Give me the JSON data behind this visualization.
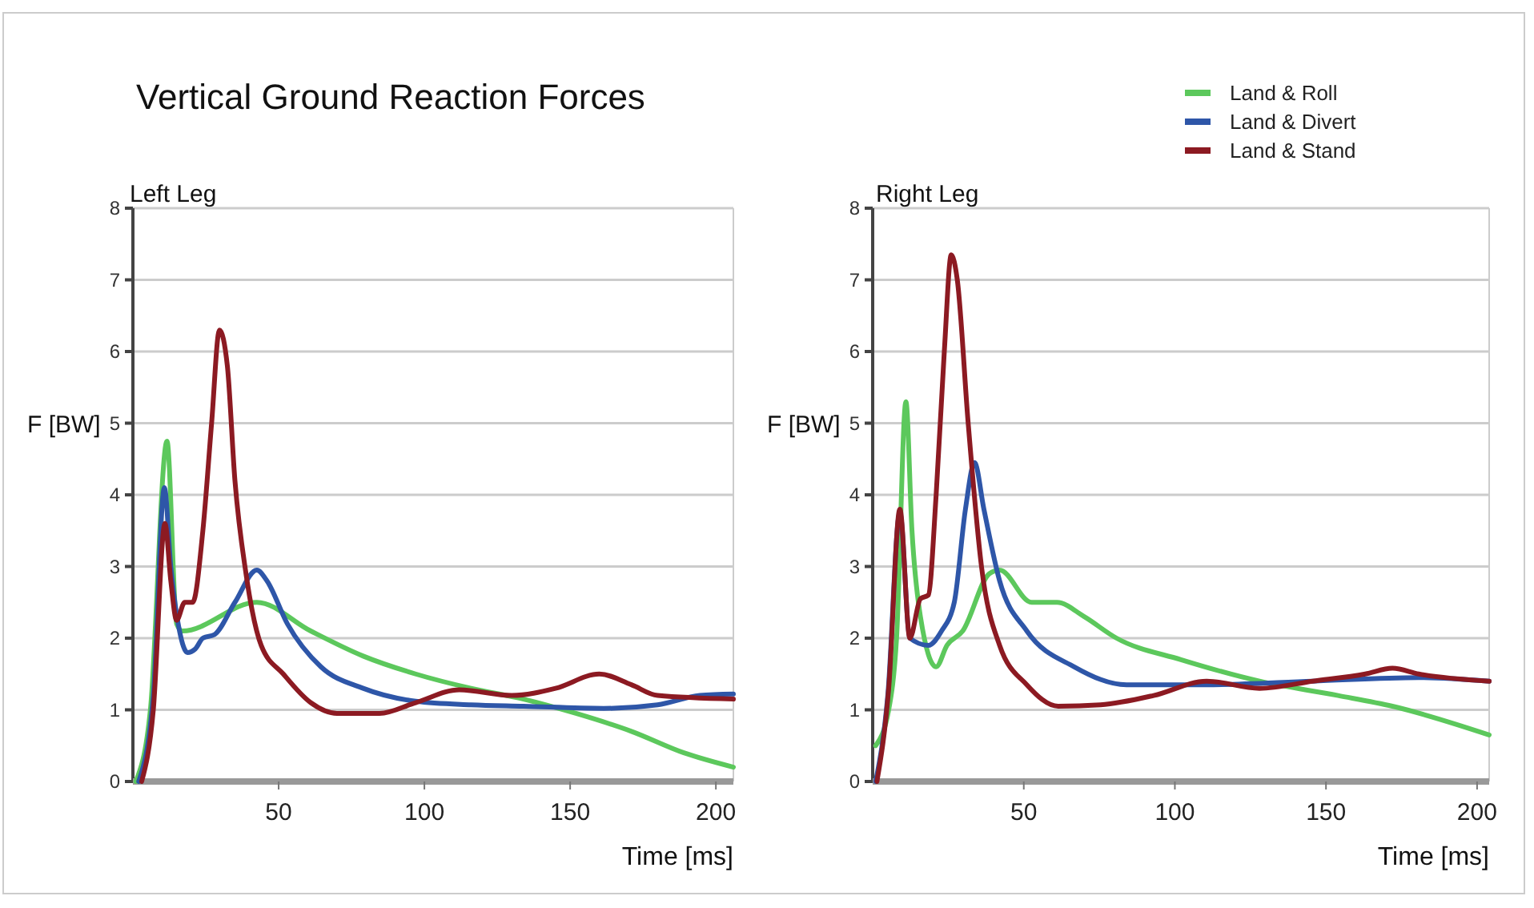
{
  "chart_data": [
    {
      "type": "line",
      "title": "Vertical Ground Reaction Forces",
      "subtitle": "Left Leg",
      "xlabel": "Time [ms]",
      "ylabel": "F [BW]",
      "xlim": [
        0,
        206
      ],
      "xticks": [
        50,
        100,
        150,
        200
      ],
      "ylim": [
        0,
        8
      ],
      "yticks": [
        0,
        1,
        2,
        3,
        4,
        5,
        6,
        7,
        8
      ],
      "grid": "y",
      "legend": false,
      "line_style": "solid",
      "series": [
        {
          "color": "#5cc85c",
          "x": [
            1,
            6,
            11.7,
            15,
            17,
            42.5,
            61,
            79,
            97,
            116,
            134,
            152,
            171,
            189,
            206
          ],
          "values": [
            0,
            1,
            4.75,
            2.2,
            2.1,
            2.5,
            2.1,
            1.75,
            1.5,
            1.3,
            1.15,
            0.95,
            0.7,
            0.4,
            0.2
          ]
        },
        {
          "color": "#2e56a8",
          "x": [
            2,
            7,
            10.8,
            13,
            16,
            18.7,
            21.4,
            24,
            28,
            35,
            42.5,
            46,
            53,
            64.5,
            79,
            97,
            116,
            134,
            161.5,
            180,
            194.5,
            206
          ],
          "values": [
            0,
            1.2,
            4.1,
            3,
            2.1,
            1.8,
            1.85,
            2,
            2.05,
            2.5,
            2.95,
            2.8,
            2.2,
            1.6,
            1.3,
            1.12,
            1.07,
            1.05,
            1.02,
            1.07,
            1.2,
            1.22
          ]
        },
        {
          "color": "#8c1a22",
          "x": [
            3,
            7,
            11,
            13,
            15,
            17.8,
            20.5,
            24,
            27,
            29.7,
            32.4,
            35,
            38.8,
            44,
            51.6,
            61,
            70,
            84.6,
            97,
            112,
            130,
            145,
            160,
            171,
            180,
            206
          ],
          "values": [
            0,
            1,
            3.6,
            2.8,
            2.25,
            2.5,
            2.5,
            3.5,
            5,
            6.3,
            5.8,
            4.2,
            2.9,
            1.9,
            1.5,
            1.1,
            0.95,
            0.95,
            1.1,
            1.28,
            1.2,
            1.3,
            1.5,
            1.35,
            1.2,
            1.15
          ]
        }
      ]
    },
    {
      "type": "line",
      "title": "Right Leg",
      "xlabel": "Time [ms]",
      "ylabel": "F [BW]",
      "xlim": [
        0,
        204
      ],
      "xticks": [
        50,
        100,
        150,
        200
      ],
      "ylim": [
        0,
        8
      ],
      "yticks": [
        0,
        1,
        2,
        3,
        4,
        5,
        6,
        7,
        8
      ],
      "grid": "y",
      "legend": "top right",
      "line_style": "solid",
      "series": [
        {
          "name": "Land & Roll",
          "color": "#5cc85c",
          "x": [
            1,
            5.3,
            7.9,
            11,
            13,
            15.8,
            21,
            24.6,
            29.8,
            38.6,
            42,
            52.6,
            61,
            70,
            80.7,
            102,
            128,
            154,
            172,
            204
          ],
          "values": [
            0.5,
            1,
            2,
            5.3,
            3.5,
            2.3,
            1.6,
            1.9,
            2.1,
            2.9,
            2.95,
            2.5,
            2.5,
            2.3,
            2,
            1.7,
            1.4,
            1.2,
            1.05,
            0.65
          ]
        },
        {
          "name": "Land & Divert",
          "color": "#2e56a8",
          "x": [
            1,
            5,
            9,
            12.3,
            18.4,
            22.8,
            27,
            30.7,
            33.7,
            36.8,
            42,
            51,
            66.7,
            84,
            110.5,
            145.6,
            180.7,
            204
          ],
          "values": [
            0,
            1.2,
            3.75,
            2,
            1.9,
            2.1,
            2.5,
            3.8,
            4.45,
            3.8,
            2.8,
            2.1,
            1.6,
            1.35,
            1.35,
            1.4,
            1.45,
            1.4
          ]
        },
        {
          "name": "Land & Stand",
          "color": "#8c1a22",
          "x": [
            1.4,
            5.3,
            9,
            12.3,
            15.8,
            18.4,
            21,
            23.7,
            26,
            28,
            31.6,
            36,
            42,
            51,
            61.4,
            75.4,
            93,
            110.5,
            128,
            145.6,
            163,
            172,
            180.7,
            204
          ],
          "values": [
            0,
            1.3,
            3.8,
            2,
            2.55,
            2.6,
            4,
            6,
            7.35,
            7,
            5,
            3,
            1.9,
            1.35,
            1.05,
            1.07,
            1.2,
            1.4,
            1.3,
            1.4,
            1.5,
            1.58,
            1.5,
            1.4
          ]
        }
      ]
    }
  ]
}
